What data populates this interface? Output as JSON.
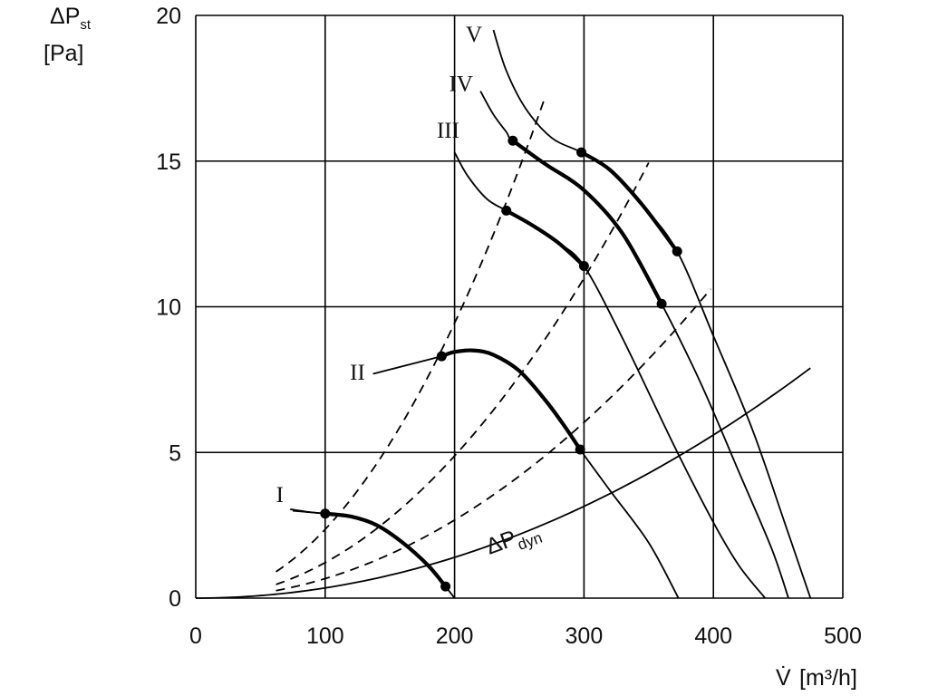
{
  "chart_data": {
    "type": "line",
    "x_axis": {
      "symbol": "V̇",
      "unit": "[m³/h]",
      "range": [
        0,
        500
      ],
      "ticks": [
        "0",
        "100",
        "200",
        "300",
        "400",
        "500"
      ]
    },
    "y_axis": {
      "symbol_main": "ΔP",
      "symbol_sub": "st",
      "unit": "[Pa]",
      "range": [
        0,
        20
      ],
      "ticks": [
        "0",
        "5",
        "10",
        "15",
        "20"
      ]
    },
    "grid": true,
    "fan_curves": [
      {
        "label": "I",
        "points": [
          [
            75,
            3.0
          ],
          [
            100,
            2.9
          ],
          [
            120,
            2.8
          ],
          [
            140,
            2.5
          ],
          [
            160,
            1.9
          ],
          [
            180,
            1.1
          ],
          [
            193,
            0.4
          ],
          [
            200,
            0
          ]
        ],
        "operating_range": [
          100,
          193
        ]
      },
      {
        "label": "II",
        "points": [
          [
            190,
            8.3
          ],
          [
            200,
            8.45
          ],
          [
            215,
            8.5
          ],
          [
            230,
            8.35
          ],
          [
            250,
            7.8
          ],
          [
            270,
            6.8
          ],
          [
            285,
            5.9
          ],
          [
            297,
            5.1
          ],
          [
            320,
            3.7
          ],
          [
            350,
            1.9
          ],
          [
            373,
            0
          ]
        ],
        "operating_range": [
          190,
          297
        ]
      },
      {
        "label": "III",
        "points": [
          [
            200,
            15.3
          ],
          [
            210,
            14.5
          ],
          [
            225,
            13.7
          ],
          [
            240,
            13.3
          ],
          [
            260,
            12.8
          ],
          [
            280,
            12.2
          ],
          [
            300,
            11.4
          ],
          [
            330,
            8.9
          ],
          [
            370,
            5.2
          ],
          [
            400,
            2.6
          ],
          [
            420,
            1.1
          ],
          [
            440,
            0
          ]
        ],
        "operating_range": [
          240,
          300
        ]
      },
      {
        "label": "IV",
        "points": [
          [
            220,
            17.4
          ],
          [
            230,
            16.6
          ],
          [
            240,
            16.0
          ],
          [
            245,
            15.7
          ],
          [
            270,
            14.9
          ],
          [
            300,
            14.0
          ],
          [
            330,
            12.5
          ],
          [
            360,
            10.1
          ],
          [
            390,
            7.4
          ],
          [
            420,
            4.3
          ],
          [
            445,
            1.7
          ],
          [
            458,
            0
          ]
        ],
        "operating_range": [
          245,
          360
        ]
      },
      {
        "label": "V",
        "points": [
          [
            230,
            19.5
          ],
          [
            240,
            18.1
          ],
          [
            255,
            16.8
          ],
          [
            275,
            15.8
          ],
          [
            298,
            15.3
          ],
          [
            320,
            14.7
          ],
          [
            345,
            13.5
          ],
          [
            372,
            11.9
          ],
          [
            400,
            9.0
          ],
          [
            430,
            5.8
          ],
          [
            455,
            2.6
          ],
          [
            475,
            0
          ]
        ],
        "operating_range": [
          298,
          372
        ]
      }
    ],
    "operating_points": [
      [
        100,
        2.9
      ],
      [
        193,
        0.4
      ],
      [
        190,
        8.3
      ],
      [
        297,
        5.1
      ],
      [
        240,
        13.3
      ],
      [
        300,
        11.4
      ],
      [
        245,
        15.7
      ],
      [
        360,
        10.1
      ],
      [
        298,
        15.3
      ],
      [
        372,
        11.9
      ]
    ],
    "system_curves": [
      {
        "k": 0.000236,
        "x_range": [
          62,
          271
        ]
      },
      {
        "k": 0.000122,
        "x_range": [
          62,
          351
        ]
      },
      {
        "k": 6.7e-05,
        "x_range": [
          62,
          401
        ]
      }
    ],
    "dynamic_pressure": {
      "label_main": "ΔP",
      "label_sub": "dyn",
      "k": 3.5e-05,
      "x_range": [
        0,
        475
      ]
    },
    "label_positions_in_data_units": {
      "I": [
        65,
        3.3
      ],
      "II": [
        125,
        7.5
      ],
      "III": [
        195,
        15.8
      ],
      "IV": [
        205,
        17.4
      ],
      "V": [
        215,
        19.1
      ]
    }
  }
}
